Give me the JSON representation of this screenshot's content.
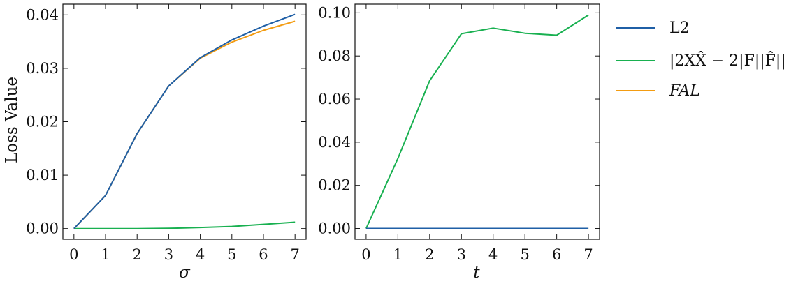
{
  "chart_data": [
    {
      "type": "line",
      "x": [
        0,
        1,
        2,
        3,
        4,
        5,
        6,
        7
      ],
      "xlabel": "σ",
      "ylabel": "Loss Value",
      "xlim": [
        -0.35,
        7.35
      ],
      "ylim": [
        -0.002,
        0.042
      ],
      "xticks": [
        0,
        1,
        2,
        3,
        4,
        5,
        6,
        7
      ],
      "yticks": [
        0.0,
        0.01,
        0.02,
        0.03,
        0.04
      ],
      "ytick_labels": [
        "0.00",
        "0.01",
        "0.02",
        "0.03",
        "0.04"
      ],
      "series": [
        {
          "key": "l2",
          "values": [
            0.0,
            0.0062,
            0.0178,
            0.0267,
            0.032,
            0.0353,
            0.0379,
            0.0401
          ]
        },
        {
          "key": "freq",
          "values": [
            0.0,
            0.0,
            0.0,
            5e-05,
            0.0002,
            0.0004,
            0.0008,
            0.0012
          ]
        },
        {
          "key": "fal",
          "values": [
            0.0,
            0.0062,
            0.0178,
            0.0267,
            0.0319,
            0.0349,
            0.0371,
            0.0388
          ]
        }
      ]
    },
    {
      "type": "line",
      "x": [
        0,
        1,
        2,
        3,
        4,
        5,
        6,
        7
      ],
      "xlabel": "t",
      "ylabel": "",
      "xlim": [
        -0.35,
        7.35
      ],
      "ylim": [
        -0.005,
        0.104
      ],
      "xticks": [
        0,
        1,
        2,
        3,
        4,
        5,
        6,
        7
      ],
      "yticks": [
        0.0,
        0.02,
        0.04,
        0.06,
        0.08,
        0.1
      ],
      "ytick_labels": [
        "0.00",
        "0.02",
        "0.04",
        "0.06",
        "0.08",
        "0.10"
      ],
      "series": [
        {
          "key": "l2",
          "values": [
            0,
            0,
            0,
            0,
            0,
            0,
            0,
            0
          ]
        },
        {
          "key": "freq",
          "values": [
            0.0,
            0.0325,
            0.0685,
            0.0903,
            0.0929,
            0.0905,
            0.0896,
            0.099
          ]
        },
        {
          "key": "fal",
          "values": [
            0,
            0,
            0,
            0,
            0,
            0,
            0,
            0
          ]
        }
      ]
    }
  ],
  "legend": {
    "placement": "outside-right",
    "entries": [
      {
        "key": "l2",
        "label": "L2",
        "color": "#1f5fa6"
      },
      {
        "key": "freq",
        "label": "|2XX̂ − 2|F||F̂||",
        "color": "#18b050"
      },
      {
        "key": "fal",
        "label": "FAL",
        "color": "#f39c12"
      }
    ]
  },
  "colors": {
    "l2": "#1f5fa6",
    "freq": "#18b050",
    "fal": "#f39c12"
  }
}
